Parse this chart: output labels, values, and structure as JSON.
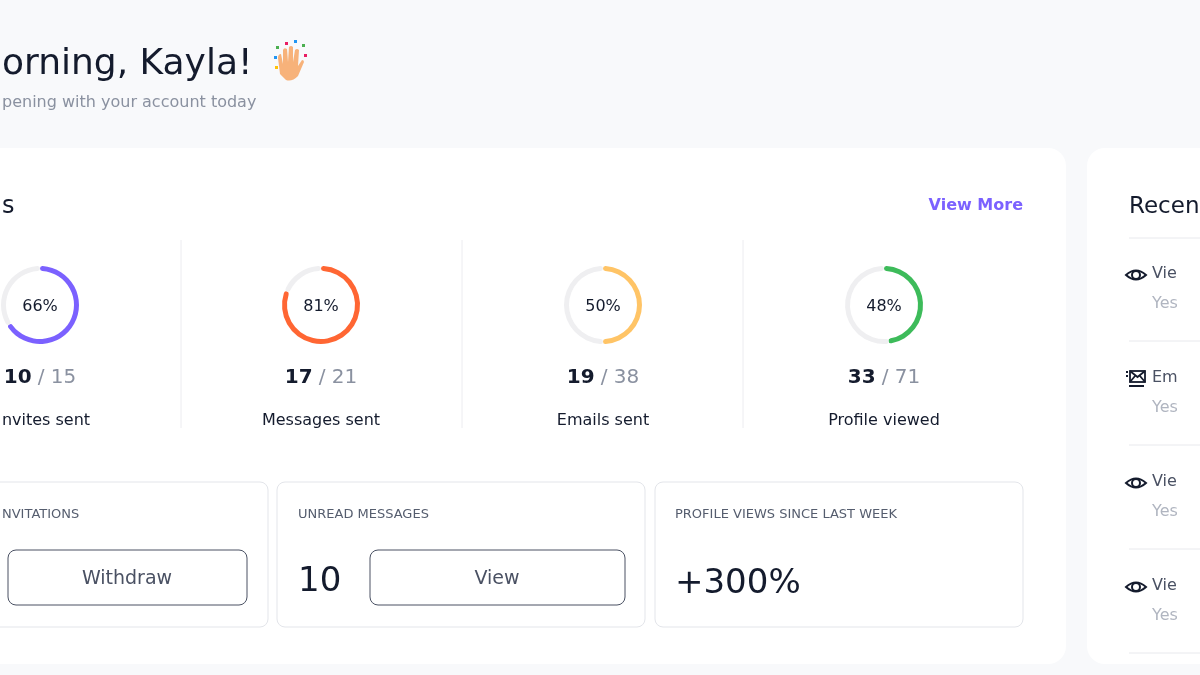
{
  "chart_data": [
    {
      "type": "other",
      "title": "orning, Kayla!",
      "subtitle": "pening with your account today",
      "annotations": [
        "s",
        "View More",
        "NVITATIONS",
        "Withdraw",
        "UNREAD MESSAGES",
        "10",
        "View",
        "PROFILE VIEWS SINCE LAST WEEK",
        "+300%",
        "Recen",
        "Vie",
        "Yes",
        "Em",
        "Yes",
        "Vie",
        "Yes",
        "Vie",
        "Yes"
      ]
    },
    {
      "type": "donut",
      "title": "nvites sent",
      "categories": [
        null,
        null
      ],
      "values": [
        66,
        34
      ],
      "colors": [
        "#7b61ff",
        "#efeff1"
      ],
      "value_labels": [
        "66%",
        null
      ],
      "annotations": [
        "10",
        "/ 15"
      ]
    },
    {
      "type": "donut",
      "title": "Messages sent",
      "categories": [
        null,
        null
      ],
      "values": [
        81,
        19
      ],
      "colors": [
        "#ff6633",
        "#efeff1"
      ],
      "value_labels": [
        "81%",
        null
      ],
      "annotations": [
        "17",
        "/ 21"
      ]
    },
    {
      "type": "donut",
      "title": "Emails sent",
      "categories": [
        null,
        null
      ],
      "values": [
        50,
        50
      ],
      "colors": [
        "#ffc466",
        "#efeff1"
      ],
      "value_labels": [
        "50%",
        null
      ],
      "annotations": [
        "19",
        "/ 38"
      ]
    },
    {
      "type": "donut",
      "title": "Profile viewed",
      "categories": [
        null,
        null
      ],
      "values": [
        48,
        52
      ],
      "colors": [
        "#3dbb5a",
        "#efeff1"
      ],
      "value_labels": [
        "48%",
        null
      ],
      "annotations": [
        "33",
        "/ 71"
      ]
    }
  ]
}
